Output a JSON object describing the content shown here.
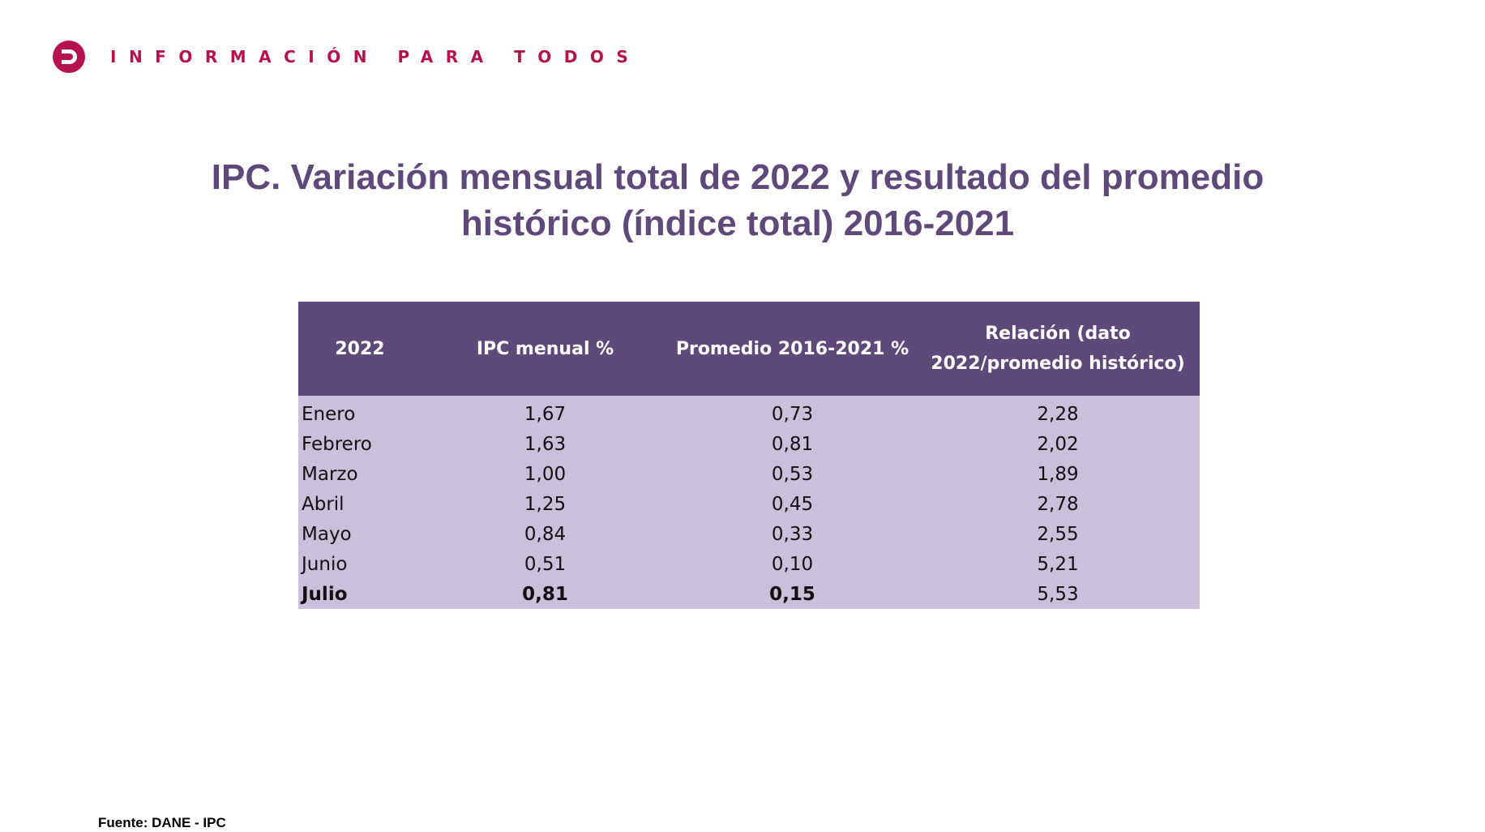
{
  "brand": {
    "logo_icon": "dane-logo-icon",
    "tagline": "INFORMACIÓN PARA TODOS"
  },
  "colors": {
    "brand_magenta": "#b5124f",
    "title_purple": "#5f487a",
    "header_fill": "#5f487a",
    "body_fill": "#cbc0db"
  },
  "title": {
    "line1": "IPC. Variación mensual total de 2022 y resultado del promedio",
    "line2": "histórico (índice total) 2016-2021"
  },
  "table": {
    "headers": [
      "2022",
      "IPC menual %",
      "Promedio 2016-2021 %",
      "Relación (dato 2022/promedio histórico)"
    ],
    "rows": [
      [
        "Enero",
        "1,67",
        "0,73",
        "2,28"
      ],
      [
        "Febrero",
        "1,63",
        "0,81",
        "2,02"
      ],
      [
        "Marzo",
        "1,00",
        "0,53",
        "1,89"
      ],
      [
        "Abril",
        "1,25",
        "0,45",
        "2,78"
      ],
      [
        "Mayo",
        "0,84",
        "0,33",
        "2,55"
      ],
      [
        "Junio",
        "0,51",
        "0,10",
        "5,21"
      ],
      [
        "Julio",
        "0,81",
        "0,15",
        "5,53"
      ]
    ]
  },
  "source": "Fuente: DANE - IPC"
}
